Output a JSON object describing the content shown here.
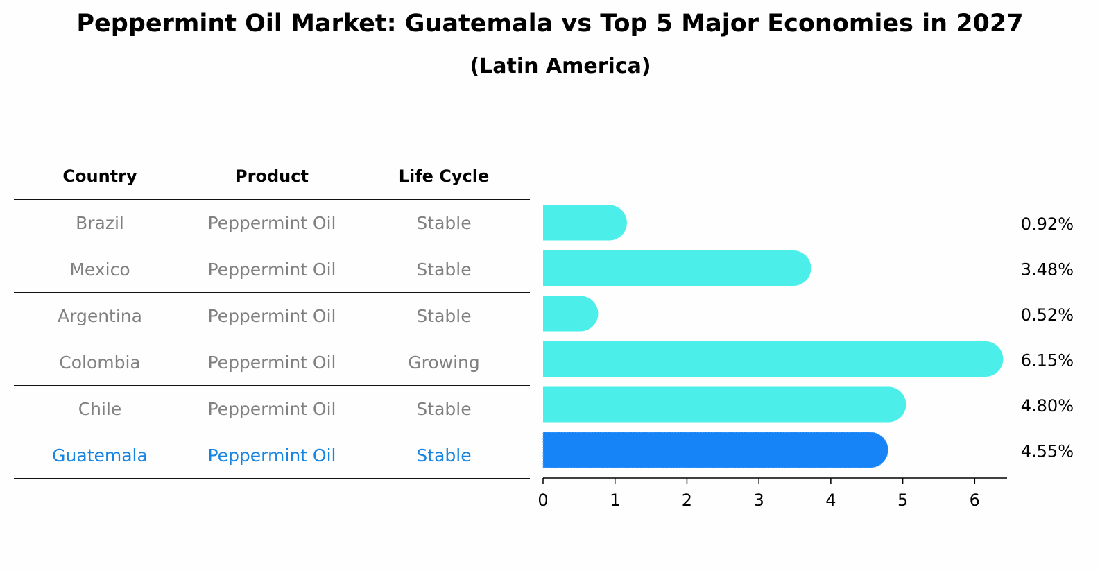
{
  "title": "Peppermint Oil Market: Guatemala vs Top 5 Major Economies in 2027",
  "subtitle": "(Latin America)",
  "table": {
    "headers": [
      "Country",
      "Product",
      "Life Cycle"
    ],
    "rows": [
      {
        "country": "Brazil",
        "product": "Peppermint Oil",
        "life_cycle": "Stable"
      },
      {
        "country": "Mexico",
        "product": "Peppermint Oil",
        "life_cycle": "Stable"
      },
      {
        "country": "Argentina",
        "product": "Peppermint Oil",
        "life_cycle": "Stable"
      },
      {
        "country": "Colombia",
        "product": "Peppermint Oil",
        "life_cycle": "Growing"
      },
      {
        "country": "Chile",
        "product": "Peppermint Oil",
        "life_cycle": "Stable"
      },
      {
        "country": "Guatemala",
        "product": "Peppermint Oil",
        "life_cycle": "Stable"
      }
    ]
  },
  "colors": {
    "bar": "#4beee9",
    "highlight_bar": "#1684f6",
    "highlight_text": "#1684e0",
    "muted_text": "#808080"
  },
  "chart_data": {
    "type": "bar",
    "orientation": "horizontal",
    "categories": [
      "Brazil",
      "Mexico",
      "Argentina",
      "Colombia",
      "Chile",
      "Guatemala"
    ],
    "values": [
      0.92,
      3.48,
      0.52,
      6.15,
      4.8,
      4.55
    ],
    "value_labels": [
      "0.92%",
      "3.48%",
      "0.52%",
      "6.15%",
      "4.80%",
      "4.55%"
    ],
    "highlight": "Guatemala",
    "xlim": [
      0,
      6.45
    ],
    "xticks": [
      0,
      1,
      2,
      3,
      4,
      5,
      6
    ],
    "xlabel": "",
    "ylabel": "",
    "grid": false
  }
}
